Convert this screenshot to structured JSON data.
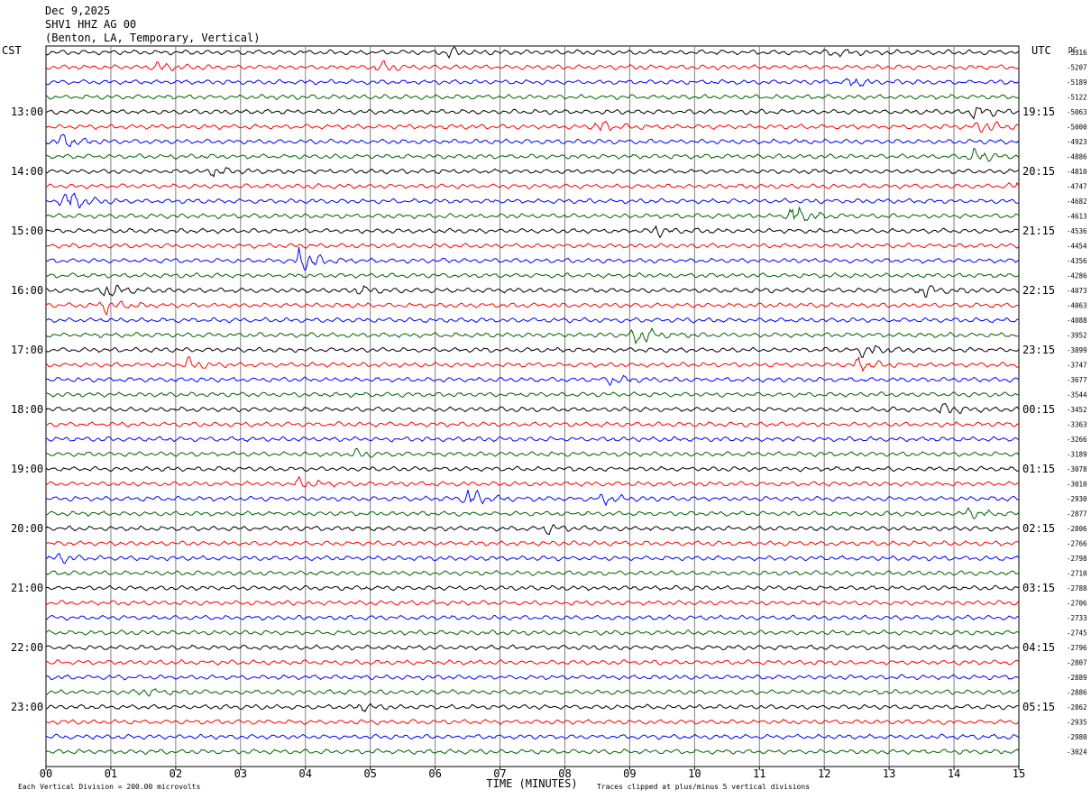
{
  "header": {
    "date": "Dec 9,2025",
    "station": "SHV1 HHZ AG 00",
    "location": "(Benton, LA, Temporary, Vertical)"
  },
  "left_tz": "CST",
  "right_tz": "UTC",
  "dc_label": "DC",
  "left_times": [
    "13:00",
    "14:00",
    "15:00",
    "16:00",
    "17:00",
    "18:00",
    "19:00",
    "20:00",
    "21:00",
    "22:00",
    "23:00"
  ],
  "right_times": [
    "19:15",
    "20:15",
    "21:15",
    "22:15",
    "23:15",
    "00:15",
    "01:15",
    "02:15",
    "03:15",
    "04:15",
    "05:15"
  ],
  "x_ticks": [
    "00",
    "01",
    "02",
    "03",
    "04",
    "05",
    "06",
    "07",
    "08",
    "09",
    "10",
    "11",
    "12",
    "13",
    "14",
    "15"
  ],
  "x_axis_label": "TIME (MINUTES)",
  "footer_left": "Each Vertical Division =  200.00 microvolts",
  "footer_right": "Traces clipped at plus/minus 5 vertical divisions",
  "dc_offsets": [
    "-5316",
    "-5207",
    "-5189",
    "-5122",
    "-5063",
    "-5000",
    "-4923",
    "-4886",
    "-4810",
    "-4747",
    "-4682",
    "-4613",
    "-4536",
    "-4454",
    "-4356",
    "-4286",
    "-4073",
    "-4063",
    "-4088",
    "-3952",
    "-3899",
    "-3747",
    "-3677",
    "-3544",
    "-3452",
    "-3363",
    "-3266",
    "-3189",
    "-3078",
    "-3010",
    "-2930",
    "-2877",
    "-2806",
    "-2766",
    "-2798",
    "-2710",
    "-2788",
    "-2706",
    "-2733",
    "-2745",
    "-2796",
    "-2807",
    "-2889",
    "-2886",
    "-2862",
    "-2935",
    "-2980",
    "-3024"
  ],
  "colors": {
    "trace_cycle": [
      "#000000",
      "#ff0000",
      "#0000ff",
      "#006400"
    ],
    "grid": "#808080"
  },
  "chart_data": {
    "type": "line",
    "title": "",
    "xlabel": "TIME (MINUTES)",
    "ylabel": "",
    "xlim": [
      0,
      15
    ],
    "trace_count": 48,
    "trace_interval_minutes": 15,
    "bursts": [
      {
        "trace": 0,
        "minute": 6.2,
        "amp": 2.0
      },
      {
        "trace": 0,
        "minute": 12.1,
        "amp": 2.0
      },
      {
        "trace": 1,
        "minute": 1.7,
        "amp": 2.0
      },
      {
        "trace": 1,
        "minute": 5.1,
        "amp": 2.2
      },
      {
        "trace": 2,
        "minute": 12.4,
        "amp": 1.8
      },
      {
        "trace": 4,
        "minute": 14.3,
        "amp": 2.5
      },
      {
        "trace": 5,
        "minute": 8.5,
        "amp": 2.2
      },
      {
        "trace": 5,
        "minute": 14.4,
        "amp": 2.4
      },
      {
        "trace": 6,
        "minute": 0.2,
        "amp": 3.0
      },
      {
        "trace": 7,
        "minute": 14.3,
        "amp": 2.5
      },
      {
        "trace": 8,
        "minute": 2.6,
        "amp": 2.0
      },
      {
        "trace": 9,
        "minute": 14.9,
        "amp": 2.2
      },
      {
        "trace": 10,
        "minute": 0.3,
        "amp": 4.5
      },
      {
        "trace": 11,
        "minute": 11.5,
        "amp": 4.0
      },
      {
        "trace": 12,
        "minute": 9.4,
        "amp": 2.2
      },
      {
        "trace": 14,
        "minute": 3.9,
        "amp": 5.0
      },
      {
        "trace": 16,
        "minute": 0.9,
        "amp": 3.0
      },
      {
        "trace": 16,
        "minute": 4.8,
        "amp": 2.0
      },
      {
        "trace": 16,
        "minute": 13.5,
        "amp": 2.5
      },
      {
        "trace": 17,
        "minute": 0.9,
        "amp": 3.0
      },
      {
        "trace": 19,
        "minute": 9.1,
        "amp": 4.0
      },
      {
        "trace": 20,
        "minute": 12.6,
        "amp": 2.5
      },
      {
        "trace": 21,
        "minute": 2.2,
        "amp": 2.2
      },
      {
        "trace": 21,
        "minute": 12.5,
        "amp": 2.2
      },
      {
        "trace": 22,
        "minute": 8.7,
        "amp": 1.6
      },
      {
        "trace": 24,
        "minute": 13.8,
        "amp": 2.5
      },
      {
        "trace": 27,
        "minute": 4.8,
        "amp": 1.8
      },
      {
        "trace": 29,
        "minute": 3.9,
        "amp": 2.2
      },
      {
        "trace": 30,
        "minute": 6.5,
        "amp": 4.0
      },
      {
        "trace": 30,
        "minute": 8.6,
        "amp": 1.8
      },
      {
        "trace": 31,
        "minute": 14.2,
        "amp": 1.8
      },
      {
        "trace": 32,
        "minute": 7.7,
        "amp": 1.6
      },
      {
        "trace": 34,
        "minute": 0.2,
        "amp": 1.5
      },
      {
        "trace": 43,
        "minute": 1.5,
        "amp": 1.2
      },
      {
        "trace": 44,
        "minute": 4.8,
        "amp": 1.5
      }
    ]
  }
}
